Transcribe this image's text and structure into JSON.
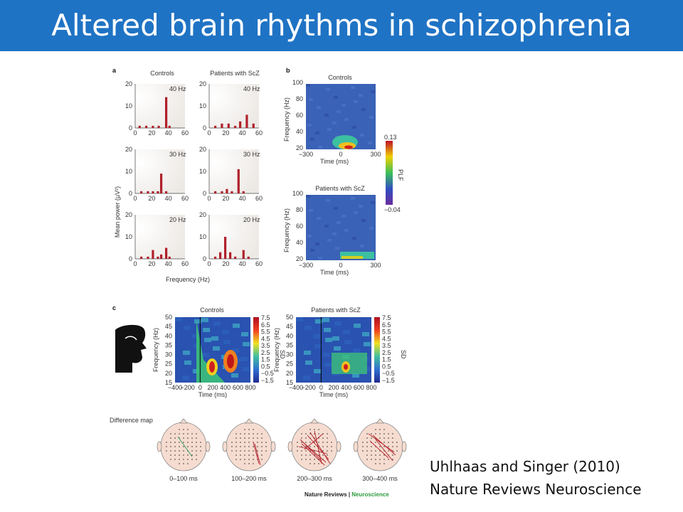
{
  "slide": {
    "title": "Altered brain rhythms in schizophrenia",
    "title_bar_color": "#1f73c4",
    "citation_line1": "Uhlhaas  and Singer (2010)",
    "citation_line2": "Nature Reviews Neuroscience"
  },
  "figure": {
    "panel_a": {
      "label": "a",
      "col_titles": [
        "Controls",
        "Patients with ScZ"
      ],
      "ylabel": "Mean power (μV²)",
      "xlabel": "Frequency (Hz)",
      "xticks": [
        "0",
        "20",
        "40",
        "60"
      ],
      "yticks": [
        "0",
        "10",
        "20"
      ],
      "row_freqs": [
        "40 Hz",
        "30 Hz",
        "20 Hz"
      ],
      "bar_color": "#b0202a"
    },
    "panel_b": {
      "label": "b",
      "titles": [
        "Controls",
        "Patients with ScZ"
      ],
      "ylabel": "Frequency (Hz)",
      "xlabel": "Time (ms)",
      "yticks": [
        "20",
        "40",
        "60",
        "80",
        "100"
      ],
      "xticks": [
        "−300",
        "0",
        "300"
      ],
      "colorbar_label": "PLF",
      "colorbar_max": "0.13",
      "colorbar_min": "−0.04"
    },
    "panel_c": {
      "label": "c",
      "titles": [
        "Controls",
        "Patients with ScZ"
      ],
      "ylabel": "Frequency (Hz)",
      "xlabel": "Time (ms)",
      "yticks": [
        "15",
        "20",
        "25",
        "30",
        "35",
        "40",
        "45",
        "50"
      ],
      "xticks": [
        "−400",
        "−200",
        "0",
        "200",
        "400",
        "600",
        "800"
      ],
      "colorbar_label": "SD",
      "colorbar_ticks": [
        "7.5",
        "6.5",
        "5.5",
        "4.5",
        "3.5",
        "2.5",
        "1.5",
        "0.5",
        "−0.5",
        "−1.5"
      ]
    },
    "difference_map": {
      "label": "Difference map",
      "windows": [
        "0–100 ms",
        "100–200 ms",
        "200–300 ms",
        "300–400 ms"
      ]
    },
    "credit_left": "Nature Reviews",
    "credit_sep": " | ",
    "credit_right": "Neuroscience"
  }
}
